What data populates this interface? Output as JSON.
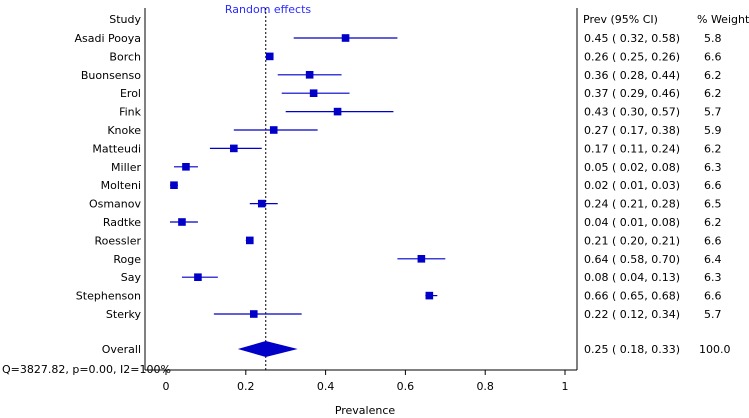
{
  "colors": {
    "marker": "#0000c8",
    "title": "#2b2bff",
    "axis": "#000000",
    "background": "#ffffff"
  },
  "chart_data": {
    "type": "forest",
    "title": "Random effects",
    "xlabel": "Prevalence",
    "xlim": [
      -0.05,
      1.0
    ],
    "xticks": [
      0,
      0.2,
      0.4,
      0.6,
      0.8,
      1
    ],
    "tick_labels": [
      "0",
      "0.2",
      "0.4",
      "0.6",
      "0.8",
      "1"
    ],
    "headers": {
      "study": "Study",
      "prev": "Prev (95% CI)",
      "weight": "% Weight"
    },
    "reference_line": 0.25,
    "studies": [
      {
        "name": "Asadi Pooya",
        "prev": 0.45,
        "lo": 0.32,
        "hi": 0.58,
        "ci_text": "0.45  ( 0.32,  0.58)",
        "weight": "5.8"
      },
      {
        "name": "Borch",
        "prev": 0.26,
        "lo": 0.25,
        "hi": 0.26,
        "ci_text": "0.26  ( 0.25,  0.26)",
        "weight": "6.6"
      },
      {
        "name": "Buonsenso",
        "prev": 0.36,
        "lo": 0.28,
        "hi": 0.44,
        "ci_text": "0.36  ( 0.28,  0.44)",
        "weight": "6.2"
      },
      {
        "name": "Erol",
        "prev": 0.37,
        "lo": 0.29,
        "hi": 0.46,
        "ci_text": "0.37  ( 0.29,  0.46)",
        "weight": "6.2"
      },
      {
        "name": "Fink",
        "prev": 0.43,
        "lo": 0.3,
        "hi": 0.57,
        "ci_text": "0.43  ( 0.30,  0.57)",
        "weight": "5.7"
      },
      {
        "name": "Knoke",
        "prev": 0.27,
        "lo": 0.17,
        "hi": 0.38,
        "ci_text": "0.27  ( 0.17,  0.38)",
        "weight": "5.9"
      },
      {
        "name": "Matteudi",
        "prev": 0.17,
        "lo": 0.11,
        "hi": 0.24,
        "ci_text": "0.17  ( 0.11,  0.24)",
        "weight": "6.2"
      },
      {
        "name": "Miller",
        "prev": 0.05,
        "lo": 0.02,
        "hi": 0.08,
        "ci_text": "0.05  ( 0.02,  0.08)",
        "weight": "6.3"
      },
      {
        "name": "Molteni",
        "prev": 0.02,
        "lo": 0.01,
        "hi": 0.03,
        "ci_text": "0.02  ( 0.01,  0.03)",
        "weight": "6.6"
      },
      {
        "name": "Osmanov",
        "prev": 0.24,
        "lo": 0.21,
        "hi": 0.28,
        "ci_text": "0.24  ( 0.21,  0.28)",
        "weight": "6.5"
      },
      {
        "name": "Radtke",
        "prev": 0.04,
        "lo": 0.01,
        "hi": 0.08,
        "ci_text": "0.04  ( 0.01,  0.08)",
        "weight": "6.2"
      },
      {
        "name": "Roessler",
        "prev": 0.21,
        "lo": 0.2,
        "hi": 0.21,
        "ci_text": "0.21  ( 0.20,  0.21)",
        "weight": "6.6"
      },
      {
        "name": "Roge",
        "prev": 0.64,
        "lo": 0.58,
        "hi": 0.7,
        "ci_text": "0.64  ( 0.58,  0.70)",
        "weight": "6.4"
      },
      {
        "name": "Say",
        "prev": 0.08,
        "lo": 0.04,
        "hi": 0.13,
        "ci_text": "0.08  ( 0.04,  0.13)",
        "weight": "6.3"
      },
      {
        "name": "Stephenson",
        "prev": 0.66,
        "lo": 0.65,
        "hi": 0.68,
        "ci_text": "0.66  ( 0.65,  0.68)",
        "weight": "6.6"
      },
      {
        "name": "Sterky",
        "prev": 0.22,
        "lo": 0.12,
        "hi": 0.34,
        "ci_text": "0.22  ( 0.12,  0.34)",
        "weight": "5.7"
      }
    ],
    "overall": {
      "name": "Overall",
      "prev": 0.25,
      "lo": 0.18,
      "hi": 0.33,
      "ci_text": "0.25  ( 0.18,  0.33)",
      "weight": "100.0"
    },
    "heterogeneity": "Q=3827.82, p=0.00, I2=100%"
  }
}
